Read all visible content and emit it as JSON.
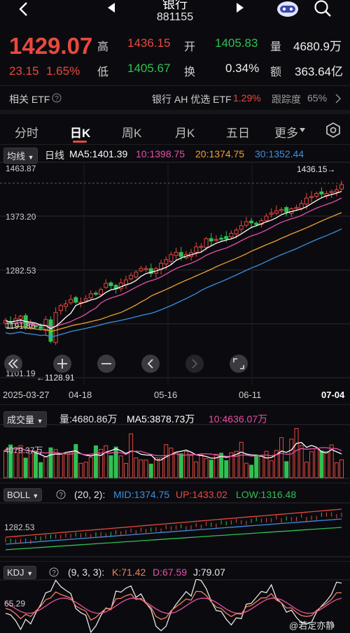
{
  "header": {
    "title": "银行",
    "code": "881155"
  },
  "quote": {
    "price": "1429.07",
    "change": "23.15",
    "change_pct": "1.65%",
    "high_label": "高",
    "high": "1436.15",
    "low_label": "低",
    "low": "1405.67",
    "open_label": "开",
    "open": "1405.83",
    "turnover_label": "换",
    "turnover": "0.34%",
    "volume_label": "量",
    "volume": "4680.9万",
    "amount_label": "额",
    "amount": "363.64亿"
  },
  "etf": {
    "label": "相关 ETF",
    "name": "银行 AH 优选 ETF",
    "pct": "1.29%",
    "tracking_label": "跟踪度",
    "tracking": "65%"
  },
  "tabs": [
    "分时",
    "日K",
    "周K",
    "月K",
    "五日",
    "更多"
  ],
  "active_tab": "日K",
  "ma_bar": {
    "selector": "均线",
    "period": "日线",
    "ma5": "MA5:1401.39",
    "ma10": "10:1398.75",
    "ma20": "20:1374.75",
    "ma30": "30:1352.44"
  },
  "main_chart": {
    "y_labels": [
      "1463.87",
      "1373.20",
      "1282.53",
      "1191.86",
      "1101.19"
    ],
    "max_marker": "1436.15→",
    "min_marker": "←1128.91",
    "dates": [
      "2025-03-27",
      "04-18",
      "05-16",
      "06-11",
      "07-04"
    ]
  },
  "volume_bar": {
    "selector": "成交量",
    "vol": "量:4680.86万",
    "ma5": "MA5:3878.73万",
    "ma10": "10:4636.07万",
    "y_label": "4079.37万"
  },
  "boll_bar": {
    "selector": "BOLL",
    "params": "(20, 2):",
    "mid": "MID:1374.75",
    "up": "UP:1433.02",
    "low": "LOW:1316.48",
    "y_label": "1282.53"
  },
  "kdj_bar": {
    "selector": "KDJ",
    "params": "(9, 3, 3):",
    "k": "K:71.42",
    "d": "D:67.59",
    "j": "J:79.07",
    "y_label": "65.29"
  },
  "watermark": "@若定亦静",
  "colors": {
    "up": "#e8493f",
    "down": "#2fc153",
    "ma5": "#ffffff",
    "ma10": "#e84fa8",
    "ma20": "#f0a030",
    "ma30": "#3d8fe0"
  }
}
